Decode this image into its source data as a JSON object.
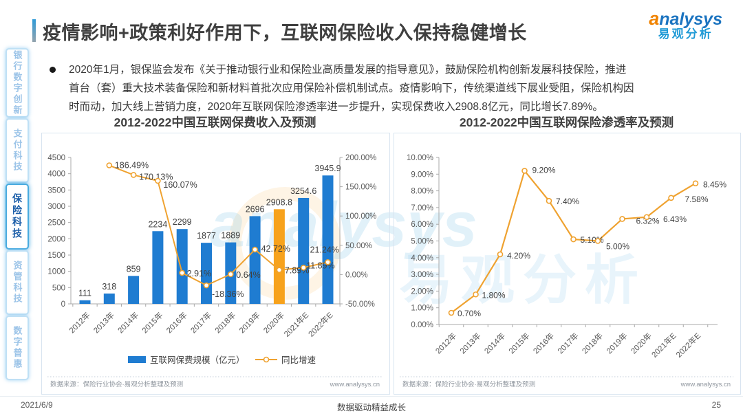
{
  "header": {
    "title": "疫情影响+政策利好作用下，互联网保险收入保持稳健增长",
    "logo": {
      "brand_a": "a",
      "brand_rest": "nalysys",
      "brand_cn": "易观分析"
    }
  },
  "sidebar": {
    "items": [
      {
        "label": "银行数字创新",
        "active": false
      },
      {
        "label": "支付科技",
        "active": false
      },
      {
        "label": "保险科技",
        "active": true
      },
      {
        "label": "资管科技",
        "active": false
      },
      {
        "label": "数字普惠",
        "active": false
      }
    ]
  },
  "bullet": {
    "lines": [
      "2020年1月，银保监会发布《关于推动银行业和保险业高质量发展的指导意见》，鼓励保险机构创新发展科技保险，推进",
      "首台（套）重大技术装备保险和新材料首批次应用保险补偿机制试点。疫情影响下，传统渠道线下展业受阻，保险机构因",
      "时而动，加大线上营销力度，2020年互联网保险渗透率进一步提升，实现保费收入2908.8亿元，同比增长7.89%。"
    ]
  },
  "watermark": {
    "en": "analysys",
    "cn": "易观分析"
  },
  "chart_data": [
    {
      "type": "bar",
      "title": "2012-2022中国互联网保费收入及预测",
      "categories": [
        "2012年",
        "2013年",
        "2014年",
        "2015年",
        "2016年",
        "2017年",
        "2018年",
        "2019年",
        "2020年",
        "2021年E",
        "2022年E"
      ],
      "series": [
        {
          "name": "互联网保费规模（亿元）",
          "kind": "bar",
          "values": [
            111,
            318,
            859,
            2234,
            2299,
            1877,
            1889,
            2696,
            2908.8,
            3254.6,
            3945.9
          ],
          "labels": [
            "111",
            "318",
            "859",
            "2234",
            "2299",
            "1877",
            "1889",
            "2696",
            "2908.8",
            "3254.6",
            "3945.9"
          ],
          "color": "#1f7cd1",
          "highlight_index": 8,
          "highlight_color": "#f7a21c"
        },
        {
          "name": "同比增速",
          "kind": "line",
          "values": [
            null,
            186.49,
            170.13,
            160.07,
            2.91,
            -18.36,
            0.64,
            42.72,
            7.89,
            11.89,
            21.24
          ],
          "labels": [
            null,
            "186.49%",
            "170.13%",
            "160.07%",
            "2.91%",
            "-18.36%",
            "0.64%",
            "42.72%",
            "7.89%",
            "11.89%",
            "21.24%"
          ],
          "color": "#efa230",
          "label_offsets": [
            null,
            [
              8,
              4
            ],
            [
              8,
              7
            ],
            [
              8,
              10
            ],
            [
              7,
              5
            ],
            [
              8,
              17
            ],
            [
              8,
              5
            ],
            [
              9,
              3
            ],
            [
              8,
              5
            ],
            [
              4,
              1
            ],
            [
              -26,
              -14
            ]
          ]
        }
      ],
      "y_left": {
        "min": 0,
        "max": 4500,
        "ticks": [
          "0",
          "500",
          "1000",
          "1500",
          "2000",
          "2500",
          "3000",
          "3500",
          "4000",
          "4500"
        ]
      },
      "y_right": {
        "min": -50,
        "max": 200,
        "ticks": [
          "-50.00%",
          "0.00%",
          "50.00%",
          "100.00%",
          "150.00%",
          "200.00%"
        ]
      },
      "grid": false,
      "legend_position": "bottom",
      "source": "数据来源：保险行业协会·易观分析整理及预测",
      "website": "www.analysys.cn"
    },
    {
      "type": "line",
      "title": "2012-2022中国互联网保险渗透率及预测",
      "categories": [
        "2012年",
        "2013年",
        "2014年",
        "2015年",
        "2016年",
        "2017年",
        "2018年",
        "2019年",
        "2020年",
        "2021年E",
        "2022年E"
      ],
      "series": [
        {
          "kind": "line",
          "values": [
            0.7,
            1.8,
            4.2,
            9.2,
            7.4,
            5.1,
            5.0,
            6.32,
            6.43,
            7.58,
            8.45
          ],
          "labels": [
            "0.70%",
            "1.80%",
            "4.20%",
            "9.20%",
            "7.40%",
            "5.10%",
            "5.00%",
            "6.32%",
            "6.43%",
            "7.58%",
            "8.45%"
          ],
          "color": "#efa230",
          "label_offsets": [
            [
              9,
              5
            ],
            [
              9,
              5
            ],
            [
              10,
              6
            ],
            [
              11,
              3
            ],
            [
              10,
              5
            ],
            [
              10,
              5
            ],
            [
              12,
              12
            ],
            [
              20,
              7
            ],
            [
              24,
              7
            ],
            [
              20,
              6
            ],
            [
              11,
              6
            ]
          ]
        }
      ],
      "ylim": [
        0,
        10
      ],
      "y_ticks": [
        "0.00%",
        "1.00%",
        "2.00%",
        "3.00%",
        "4.00%",
        "5.00%",
        "6.00%",
        "7.00%",
        "8.00%",
        "9.00%",
        "10.00%"
      ],
      "grid": false,
      "source": "数据来源：保险行业协会·易观分析整理及预测",
      "website": "www.analysys.cn"
    }
  ],
  "footer": {
    "date": "2021/6/9",
    "slogan": "数据驱动精益成长",
    "page": "25"
  }
}
